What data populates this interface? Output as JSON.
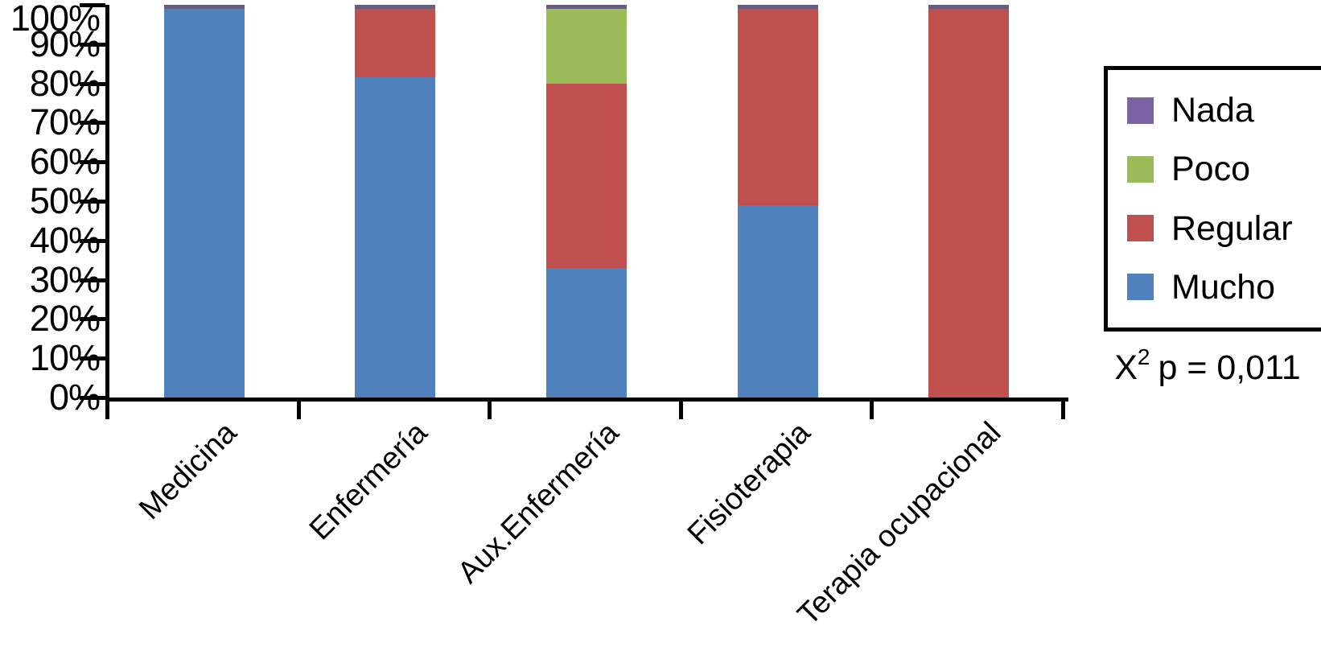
{
  "figure": {
    "annotation": {
      "base": "X",
      "superscript": "2",
      "rest": "p = 0,011"
    }
  },
  "chart_data": {
    "type": "bar",
    "subtype": "100%-stacked-column",
    "title": "",
    "xlabel": "",
    "ylabel": "",
    "grid": false,
    "categories": [
      "Medicina",
      "Enfermería",
      "Aux.Enfermería",
      "Fisioterapia",
      "Terapia ocupacional"
    ],
    "series": [
      {
        "name": "Nada",
        "color": "#7A63A5",
        "bar_color": "#675D7F",
        "values": [
          1,
          1,
          1,
          1,
          1
        ]
      },
      {
        "name": "Poco",
        "color": "#9BBB59",
        "values": [
          0,
          0,
          19,
          0,
          0
        ]
      },
      {
        "name": "Regular",
        "color": "#C0504D",
        "values": [
          0,
          17.5,
          47,
          50,
          99
        ]
      },
      {
        "name": "Mucho",
        "color": "#4F81BD",
        "values": [
          99,
          81.5,
          33,
          49,
          0
        ]
      }
    ],
    "y_axis": {
      "min": 0,
      "max": 100,
      "tick_step": 10,
      "ticks": [
        "0%",
        "10%",
        "20%",
        "30%",
        "40%",
        "50%",
        "60%",
        "70%",
        "80%",
        "90%",
        "100%"
      ]
    },
    "legend": {
      "position": "right",
      "entries": [
        "Nada",
        "Poco",
        "Regular",
        "Mucho"
      ]
    },
    "annotation": "X² p = 0,011"
  }
}
